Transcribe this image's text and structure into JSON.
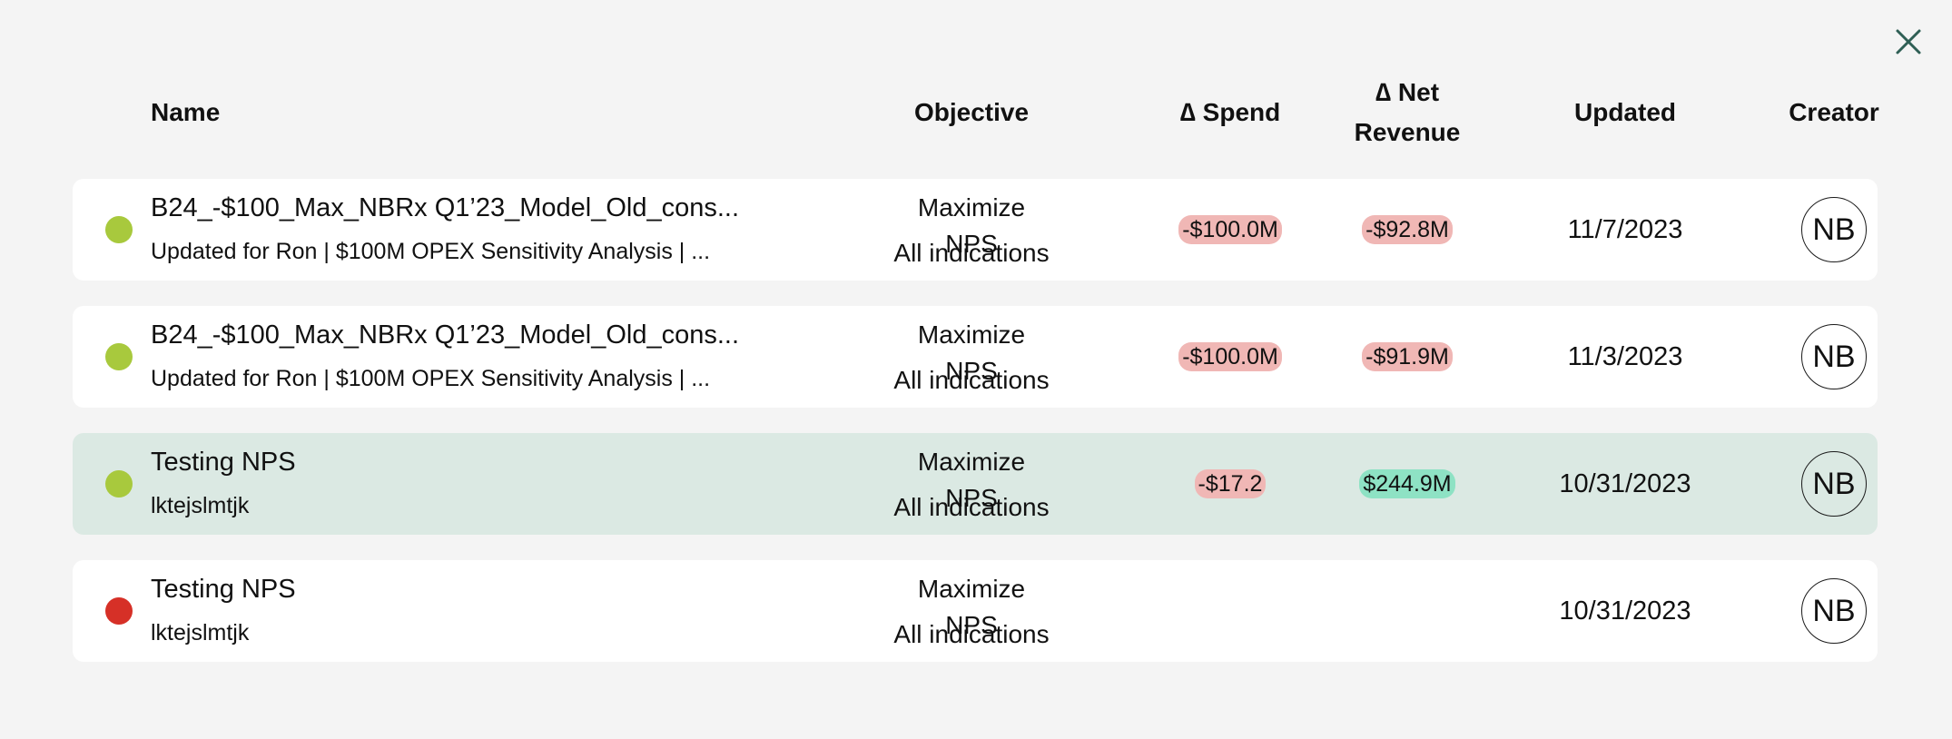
{
  "close_icon": "close-icon",
  "columns": {
    "name": "Name",
    "objective": "Objective",
    "spend_line1": "∆ Spend",
    "revenue_line1": "∆ Net",
    "revenue_line2": "Revenue",
    "updated": "Updated",
    "creator": "Creator"
  },
  "colors": {
    "status_active": "#a8c93d",
    "status_error": "#d63027",
    "negative_pill": "#f0b7b5",
    "positive_pill": "#8ee2c4",
    "selected_row": "#dbe9e3"
  },
  "rows": [
    {
      "status": "green",
      "title": "B24_-$100_Max_NBRx Q1’23_Model_Old_cons...",
      "subtitle": "Updated for Ron | $100M OPEX Sensitivity Analysis | ...",
      "objective": "Maximize NPS",
      "indication": "All indications",
      "spend": "-$100.0M",
      "spend_sign": "neg",
      "revenue": "-$92.8M",
      "revenue_sign": "neg",
      "updated": "11/7/2023",
      "creator": "NB",
      "selected": false
    },
    {
      "status": "green",
      "title": "B24_-$100_Max_NBRx Q1’23_Model_Old_cons...",
      "subtitle": "Updated for Ron | $100M OPEX Sensitivity Analysis | ...",
      "objective": "Maximize NPS",
      "indication": "All indications",
      "spend": "-$100.0M",
      "spend_sign": "neg",
      "revenue": "-$91.9M",
      "revenue_sign": "neg",
      "updated": "11/3/2023",
      "creator": "NB",
      "selected": false
    },
    {
      "status": "green",
      "title": "Testing NPS",
      "subtitle": "lktejslmtjk",
      "objective": "Maximize NPS",
      "indication": "All indications",
      "spend": "-$17.2",
      "spend_sign": "neg",
      "revenue": "$244.9M",
      "revenue_sign": "pos",
      "updated": "10/31/2023",
      "creator": "NB",
      "selected": true
    },
    {
      "status": "red",
      "title": "Testing NPS",
      "subtitle": "lktejslmtjk",
      "objective": "Maximize NPS",
      "indication": "All indications",
      "spend": "",
      "spend_sign": "",
      "revenue": "",
      "revenue_sign": "",
      "updated": "10/31/2023",
      "creator": "NB",
      "selected": false
    }
  ]
}
